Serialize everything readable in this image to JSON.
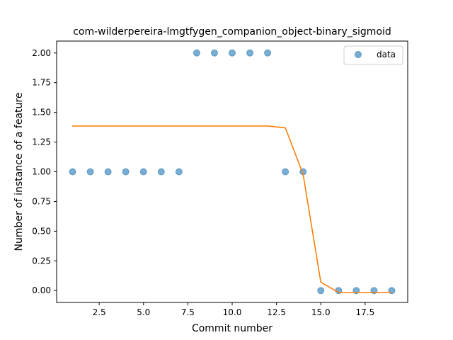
{
  "chart_data": {
    "type": "scatter",
    "title": "com-wilderpereira-lmgtfygen_companion_object-binary_sigmoid",
    "xlabel": "Commit number",
    "ylabel": "Number of instance of a feature",
    "xlim": [
      0.1,
      19.9
    ],
    "ylim": [
      -0.1,
      2.1
    ],
    "x_ticks": [
      2.5,
      5.0,
      7.5,
      10.0,
      12.5,
      15.0,
      17.5
    ],
    "y_ticks": [
      0.0,
      0.25,
      0.5,
      0.75,
      1.0,
      1.25,
      1.5,
      1.75,
      2.0
    ],
    "grid": false,
    "legend_position": "top-right",
    "series": [
      {
        "name": "data",
        "type": "scatter",
        "color": "#1f77b4",
        "x": [
          1,
          2,
          3,
          4,
          5,
          6,
          7,
          8,
          9,
          10,
          11,
          12,
          13,
          14,
          15,
          16,
          17,
          18,
          19
        ],
        "y": [
          1,
          1,
          1,
          1,
          1,
          1,
          1,
          2,
          2,
          2,
          2,
          2,
          1,
          1,
          0,
          0,
          0,
          0,
          0
        ]
      },
      {
        "type": "line",
        "color": "#ff7f0e",
        "x": [
          1,
          2,
          3,
          4,
          5,
          6,
          7,
          8,
          9,
          10,
          11,
          12,
          13,
          14,
          15,
          16,
          17,
          18,
          19
        ],
        "y": [
          1.385,
          1.385,
          1.385,
          1.385,
          1.385,
          1.385,
          1.385,
          1.385,
          1.385,
          1.385,
          1.385,
          1.385,
          1.37,
          0.98,
          0.07,
          -0.015,
          -0.015,
          -0.015,
          -0.015
        ]
      }
    ]
  }
}
